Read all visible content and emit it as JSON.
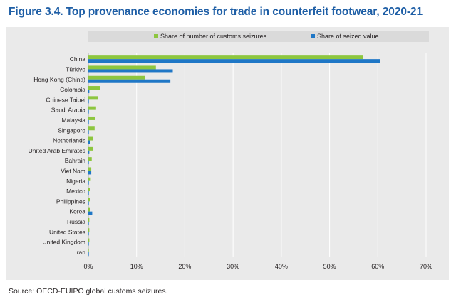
{
  "figure": {
    "title": "Figure 3.4. Top provenance economies for trade in counterfeit footwear, 2020-21",
    "source": "Source: OECD-EUIPO global customs seizures."
  },
  "colors": {
    "seizures": "#8dc63f",
    "value": "#1f77c6",
    "grid": "#ffffff",
    "plot_bg": "#eaeaea",
    "legend_bg": "#dadada"
  },
  "chart_data": {
    "type": "bar",
    "orientation": "horizontal",
    "title": "Figure 3.4. Top provenance economies for trade in counterfeit footwear, 2020-21",
    "categories": [
      "China",
      "Türkiye",
      "Hong Kong (China)",
      "Colombia",
      "Chinese Taipei",
      "Saudi Arabia",
      "Malaysia",
      "Singapore",
      "Netherlands",
      "United Arab Emirates",
      "Bahrain",
      "Viet Nam",
      "Nigeria",
      "Mexico",
      "Philippines",
      "Korea",
      "Russia",
      "United States",
      "United Kingdom",
      "Iran"
    ],
    "series": [
      {
        "name": "Share of number of customs seizures",
        "values": [
          57.0,
          14.0,
          11.8,
          2.5,
          2.0,
          1.6,
          1.4,
          1.3,
          1.0,
          1.0,
          0.7,
          0.6,
          0.5,
          0.4,
          0.3,
          0.3,
          0.2,
          0.2,
          0.2,
          0.1
        ]
      },
      {
        "name": "Share of seized value",
        "values": [
          60.5,
          17.5,
          17.0,
          0.2,
          0.1,
          0.1,
          0.1,
          0.1,
          0.4,
          0.2,
          0.1,
          0.6,
          0.1,
          0.1,
          0.1,
          0.8,
          0.1,
          0.1,
          0.1,
          0.1
        ]
      }
    ],
    "xlim": [
      0,
      70
    ],
    "xticks": [
      "0%",
      "10%",
      "20%",
      "30%",
      "40%",
      "50%",
      "60%",
      "70%"
    ],
    "grid": true,
    "legend_position": "top"
  }
}
